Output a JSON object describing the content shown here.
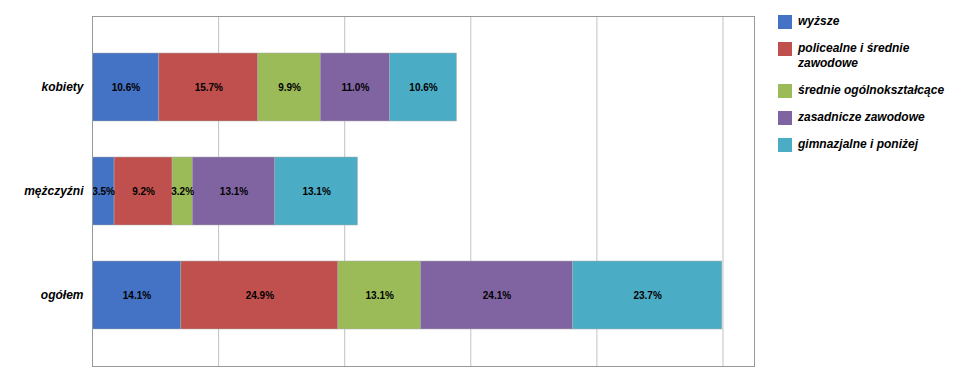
{
  "chart_data": {
    "type": "bar",
    "orientation": "horizontal",
    "stacked": true,
    "categories": [
      "kobiety",
      "mężczyźni",
      "ogółem"
    ],
    "series": [
      {
        "name": "wyższe",
        "color": "#4472C4",
        "values": [
          10.6,
          3.5,
          14.1
        ],
        "value_labels": [
          "10.6%",
          "3.5%",
          "14.1%"
        ]
      },
      {
        "name": "policealne i średnie\nzawodowe",
        "color": "#C0504D",
        "values": [
          15.7,
          9.2,
          24.9
        ],
        "value_labels": [
          "15.7%",
          "9.2%",
          "24.9%"
        ]
      },
      {
        "name": "średnie ogólnokształcące",
        "color": "#9BBB59",
        "values": [
          9.9,
          3.2,
          13.1
        ],
        "value_labels": [
          "9.9%",
          "3.2%",
          "13.1%"
        ]
      },
      {
        "name": "zasadnicze zawodowe",
        "color": "#8064A2",
        "values": [
          11.0,
          13.1,
          24.1
        ],
        "value_labels": [
          "11.0%",
          "13.1%",
          "24.1%"
        ]
      },
      {
        "name": "gimnazjalne i poniżej",
        "color": "#4BACC6",
        "values": [
          10.6,
          13.1,
          23.7
        ],
        "value_labels": [
          "10.6%",
          "13.1%",
          "23.7%"
        ]
      }
    ],
    "xlim": [
      0,
      105
    ],
    "xticks": [
      0,
      20,
      40,
      60,
      80,
      100
    ],
    "grid": true,
    "tick_labels": "y",
    "data_labels": true,
    "legend": "right"
  }
}
